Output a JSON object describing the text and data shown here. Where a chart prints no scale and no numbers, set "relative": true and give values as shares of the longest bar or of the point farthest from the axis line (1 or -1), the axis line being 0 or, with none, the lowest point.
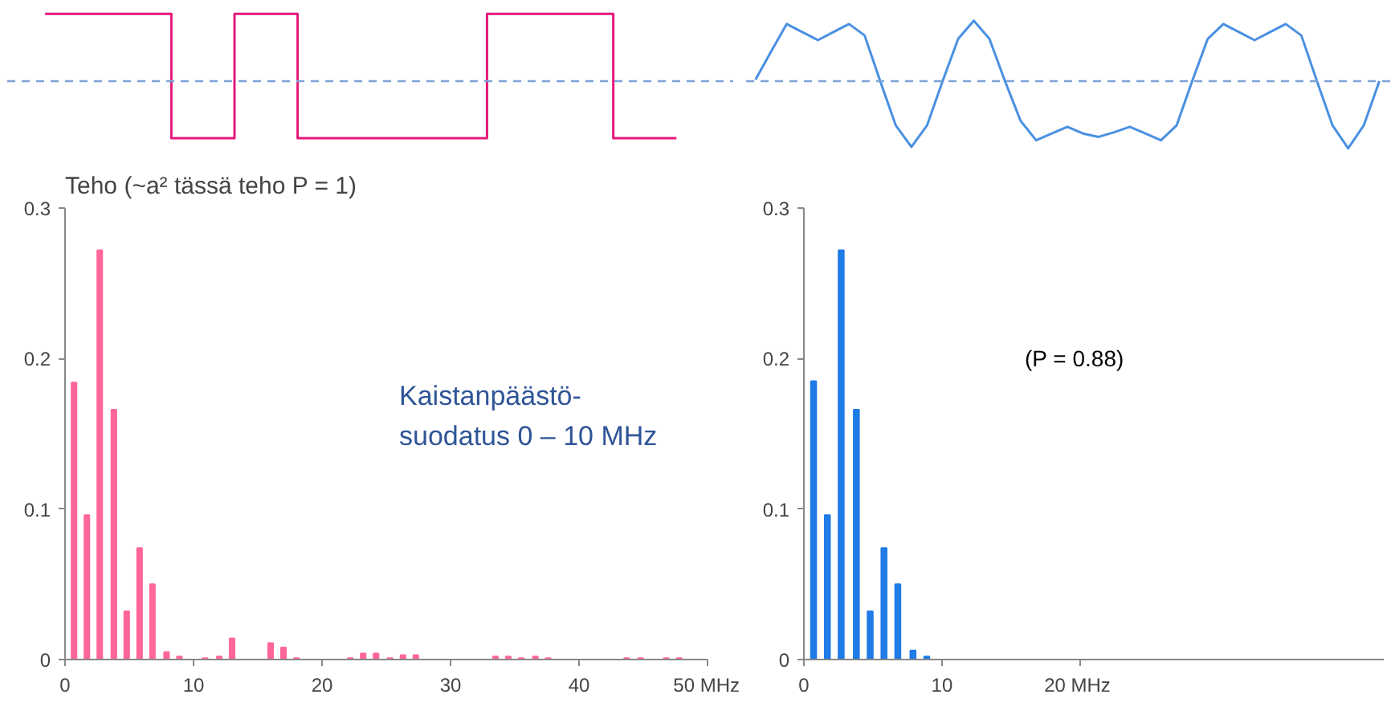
{
  "chart_data": [
    {
      "type": "step",
      "relative": true,
      "color": "#e5197a",
      "tick_labels": false,
      "ref_lines": [
        {
          "axis": "y",
          "value": 0,
          "color": "#7da2d6",
          "line_style": "dashed"
        }
      ],
      "categories": [
        null,
        null,
        null,
        null,
        null,
        null,
        null,
        null,
        null,
        null,
        null
      ],
      "values": [
        1,
        1,
        -0.85,
        1,
        -0.85,
        -0.85,
        -0.85,
        1,
        1,
        -0.85,
        -0.85
      ]
    },
    {
      "type": "line",
      "relative": true,
      "color": "#4a90e2",
      "tick_labels": false,
      "ref_lines": [
        {
          "axis": "y",
          "value": 0,
          "color": "#7da2d6",
          "line_style": "dashed"
        }
      ],
      "categories": [
        null,
        null,
        null,
        null,
        null,
        null,
        null,
        null,
        null,
        null,
        null,
        null,
        null,
        null,
        null,
        null,
        null,
        null,
        null,
        null,
        null,
        null,
        null,
        null,
        null,
        null,
        null,
        null,
        null,
        null,
        null,
        null,
        null,
        null,
        null,
        null,
        null,
        null,
        null,
        null,
        null
      ],
      "values": [
        0.02,
        0.44,
        0.85,
        0.73,
        0.61,
        0.73,
        0.85,
        0.68,
        0,
        -0.66,
        -0.98,
        -0.66,
        0,
        0.63,
        0.9,
        0.63,
        0,
        -0.59,
        -0.88,
        -0.78,
        -0.68,
        -0.78,
        -0.83,
        -0.76,
        -0.68,
        -0.78,
        -0.88,
        -0.66,
        0,
        0.63,
        0.85,
        0.73,
        0.61,
        0.73,
        0.85,
        0.68,
        0,
        -0.66,
        -1,
        -0.66,
        0
      ]
    },
    {
      "type": "bar",
      "title": "Teho (~a² tässä teho P = 1)",
      "color": "#ff6699",
      "x": [
        0.7,
        1.7,
        2.7,
        3.8,
        4.8,
        5.8,
        6.8,
        7.9,
        8.9,
        10.9,
        12.0,
        13.0,
        14.0,
        15.0,
        16.0,
        17.0,
        18.0,
        22.2,
        23.2,
        24.2,
        25.3,
        26.3,
        27.3,
        33.5,
        34.5,
        35.5,
        36.6,
        37.6,
        43.7,
        44.8,
        46.8,
        47.8
      ],
      "values": [
        0.184,
        0.096,
        0.272,
        0.166,
        0.032,
        0.074,
        0.05,
        0.005,
        0.002,
        0.001,
        0.002,
        0.014,
        null,
        null,
        0.011,
        0.008,
        0.001,
        0.001,
        0.004,
        0.004,
        0.001,
        0.003,
        0.003,
        0.002,
        0.002,
        0.001,
        0.002,
        0.001,
        0.001,
        0.001,
        0.001,
        0.001
      ],
      "xlim": [
        0,
        50
      ],
      "ylim": [
        0,
        0.3
      ],
      "xticks": [
        0,
        10,
        20,
        30,
        40,
        {
          "value": 50,
          "label": "50 MHz"
        }
      ],
      "yticks": [
        0,
        0.1,
        0.2,
        0.3
      ],
      "annotations": [
        "Kaistanpäästö-\nsuodatus 0 – 10 MHz"
      ]
    },
    {
      "type": "bar",
      "color": "#1f7be6",
      "x": [
        0.7,
        1.7,
        2.7,
        3.8,
        4.8,
        5.8,
        6.8,
        7.9,
        8.9
      ],
      "values": [
        0.185,
        0.096,
        0.272,
        0.166,
        0.032,
        0.074,
        0.05,
        0.006,
        0.002
      ],
      "xlim": [
        0,
        42
      ],
      "ylim": [
        0,
        0.3
      ],
      "xticks": [
        0,
        10,
        {
          "value": 20,
          "label": "20  MHz"
        }
      ],
      "yticks": [
        0,
        0.1,
        0.2,
        0.3
      ],
      "annotations": [
        "(P = 0.88)"
      ]
    }
  ]
}
